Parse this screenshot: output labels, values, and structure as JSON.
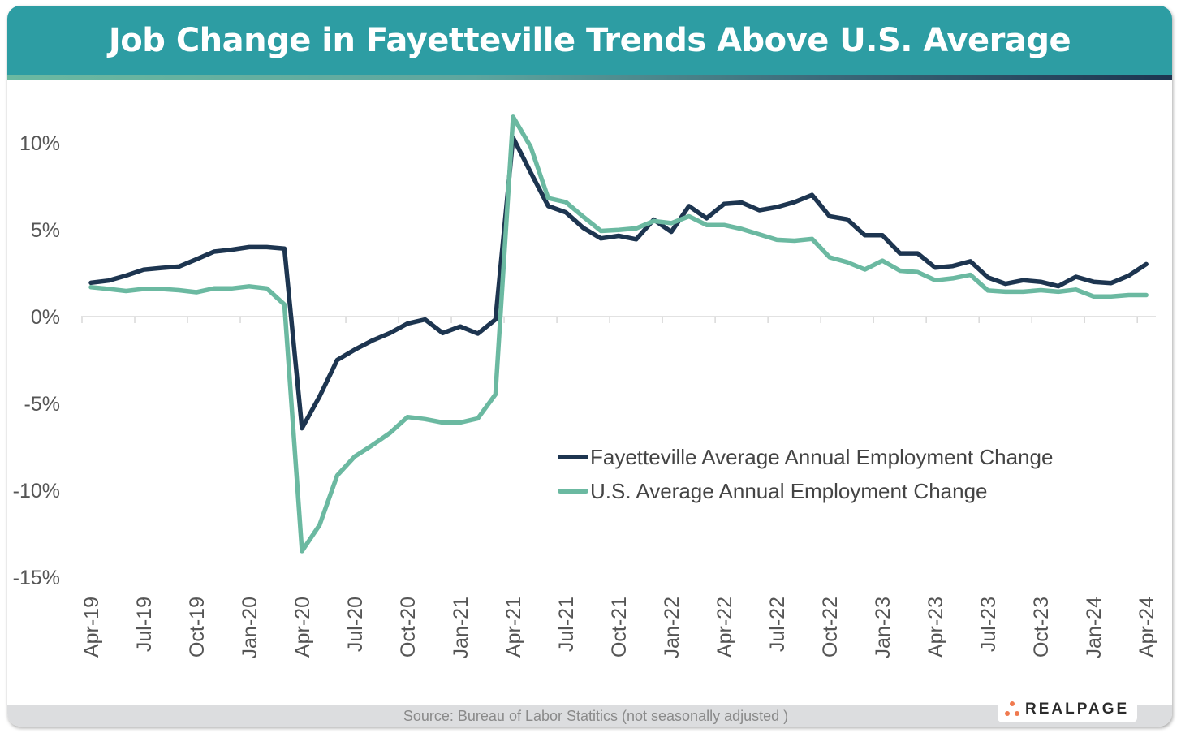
{
  "title": "Job Change in Fayetteville Trends Above U.S. Average",
  "source": "Source: Bureau of Labor Statitics (not seasonally adjusted )",
  "logo": {
    "text": "REALPAGE",
    "dot_color": "#f07a4f"
  },
  "colors": {
    "header": "#2d9da3",
    "fayetteville": "#1d3550",
    "us": "#6bb9a1",
    "grid": "#d9d9d9"
  },
  "chart_data": {
    "type": "line",
    "title": "Job Change in Fayetteville Trends Above U.S. Average",
    "xlabel": "",
    "ylabel": "",
    "ylim": [
      -15,
      12
    ],
    "yticks": [
      10,
      5,
      0,
      -5,
      -10,
      -15
    ],
    "ytick_labels": [
      "10%",
      "5%",
      "0%",
      "-5%",
      "-10%",
      "-15%"
    ],
    "x_start": "Apr-19",
    "x_end": "Apr-24",
    "x_frequency": "monthly",
    "xtick_labels": [
      "Apr-19",
      "Jul-19",
      "Oct-19",
      "Jan-20",
      "Apr-20",
      "Jul-20",
      "Oct-20",
      "Jan-21",
      "Apr-21",
      "Jul-21",
      "Oct-21",
      "Jan-22",
      "Apr-22",
      "Jul-22",
      "Oct-22",
      "Jan-23",
      "Apr-23",
      "Jul-23",
      "Oct-23",
      "Jan-24",
      "Apr-24"
    ],
    "grid": false,
    "legend_position": "center-right",
    "series": [
      {
        "name": "Fayetteville Average Annual Employment Change",
        "color": "#1d3550",
        "values": [
          1.95,
          2.07,
          2.36,
          2.7,
          2.8,
          2.88,
          3.3,
          3.74,
          3.85,
          4.0,
          4.0,
          3.91,
          -6.43,
          -4.6,
          -2.5,
          -1.9,
          -1.38,
          -0.95,
          -0.4,
          -0.17,
          -0.95,
          -0.57,
          -0.98,
          -0.17,
          10.3,
          8.3,
          6.36,
          6.0,
          5.1,
          4.5,
          4.65,
          4.45,
          5.58,
          4.88,
          6.36,
          5.66,
          6.48,
          6.56,
          6.12,
          6.3,
          6.59,
          7.0,
          5.77,
          5.6,
          4.68,
          4.68,
          3.64,
          3.64,
          2.82,
          2.91,
          3.18,
          2.25,
          1.89,
          2.09,
          2.0,
          1.75,
          2.29,
          2.0,
          1.93,
          2.35,
          3.02
        ]
      },
      {
        "name": "U.S. Average Annual Employment Change",
        "color": "#6bb9a1",
        "values": [
          1.69,
          1.59,
          1.47,
          1.59,
          1.59,
          1.52,
          1.4,
          1.62,
          1.62,
          1.74,
          1.62,
          0.69,
          -13.5,
          -12.0,
          -9.15,
          -8.05,
          -7.4,
          -6.7,
          -5.78,
          -5.9,
          -6.1,
          -6.1,
          -5.86,
          -4.48,
          11.5,
          9.77,
          6.82,
          6.59,
          5.74,
          4.93,
          4.99,
          5.08,
          5.5,
          5.38,
          5.77,
          5.27,
          5.27,
          5.04,
          4.73,
          4.42,
          4.37,
          4.47,
          3.41,
          3.13,
          2.71,
          3.22,
          2.64,
          2.56,
          2.09,
          2.2,
          2.4,
          1.5,
          1.43,
          1.43,
          1.52,
          1.43,
          1.55,
          1.16,
          1.16,
          1.24,
          1.24
        ]
      }
    ]
  }
}
